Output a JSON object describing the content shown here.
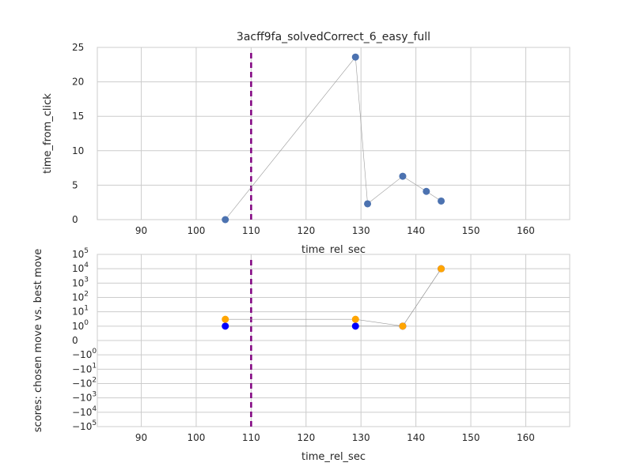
{
  "chart_data": [
    {
      "type": "scatter",
      "title": "3acff9fa_solvedCorrect_6_easy_full",
      "xlabel": "time_rel_sec",
      "ylabel": "time_from_click",
      "xlim": [
        82,
        168
      ],
      "ylim": [
        0,
        25
      ],
      "x_ticks": [
        90,
        100,
        110,
        120,
        130,
        140,
        150,
        160
      ],
      "y_ticks": [
        0,
        5,
        10,
        15,
        20,
        25
      ],
      "grid": true,
      "vline": {
        "x": 110,
        "color": "#800080",
        "style": "dashed"
      },
      "series": [
        {
          "color": "#4c72b0",
          "connected": true,
          "points": [
            {
              "x": 105.3,
              "y": 0.0
            },
            {
              "x": 129.0,
              "y": 23.6
            },
            {
              "x": 131.2,
              "y": 2.3
            },
            {
              "x": 137.6,
              "y": 6.3
            },
            {
              "x": 141.9,
              "y": 4.1
            },
            {
              "x": 144.6,
              "y": 2.7
            }
          ]
        }
      ]
    },
    {
      "type": "scatter",
      "title": "",
      "xlabel": "time_rel_sec",
      "ylabel": "scores: chosen move vs. best move",
      "xlim": [
        82,
        168
      ],
      "yscale": "symlog",
      "ylim": [
        -100000,
        100000
      ],
      "x_ticks": [
        90,
        100,
        110,
        120,
        130,
        140,
        150,
        160
      ],
      "y_ticks": [
        {
          "value": 100000,
          "base": "10",
          "exp": "5",
          "sign": ""
        },
        {
          "value": 10000,
          "base": "10",
          "exp": "4",
          "sign": ""
        },
        {
          "value": 1000,
          "base": "10",
          "exp": "3",
          "sign": ""
        },
        {
          "value": 100,
          "base": "10",
          "exp": "2",
          "sign": ""
        },
        {
          "value": 10,
          "base": "10",
          "exp": "1",
          "sign": ""
        },
        {
          "value": 1,
          "base": "10",
          "exp": "0",
          "sign": ""
        },
        {
          "value": 0,
          "base": "0",
          "exp": "",
          "sign": ""
        },
        {
          "value": -1,
          "base": "10",
          "exp": "0",
          "sign": "−"
        },
        {
          "value": -10,
          "base": "10",
          "exp": "1",
          "sign": "−"
        },
        {
          "value": -100,
          "base": "10",
          "exp": "2",
          "sign": "−"
        },
        {
          "value": -1000,
          "base": "10",
          "exp": "3",
          "sign": "−"
        },
        {
          "value": -10000,
          "base": "10",
          "exp": "4",
          "sign": "−"
        },
        {
          "value": -100000,
          "base": "10",
          "exp": "5",
          "sign": "−"
        }
      ],
      "grid": true,
      "vline": {
        "x": 110,
        "color": "#800080",
        "style": "dashed"
      },
      "series": [
        {
          "color": "#0000ff",
          "connected": true,
          "points": [
            {
              "x": 105.3,
              "y": 1
            },
            {
              "x": 129.0,
              "y": 1
            },
            {
              "x": 137.6,
              "y": 1
            },
            {
              "x": 144.6,
              "y": 10000
            }
          ]
        },
        {
          "color": "#ffa500",
          "connected": true,
          "points": [
            {
              "x": 105.3,
              "y": 3
            },
            {
              "x": 129.0,
              "y": 3
            },
            {
              "x": 137.6,
              "y": 1
            },
            {
              "x": 144.6,
              "y": 10000
            }
          ]
        }
      ]
    }
  ]
}
